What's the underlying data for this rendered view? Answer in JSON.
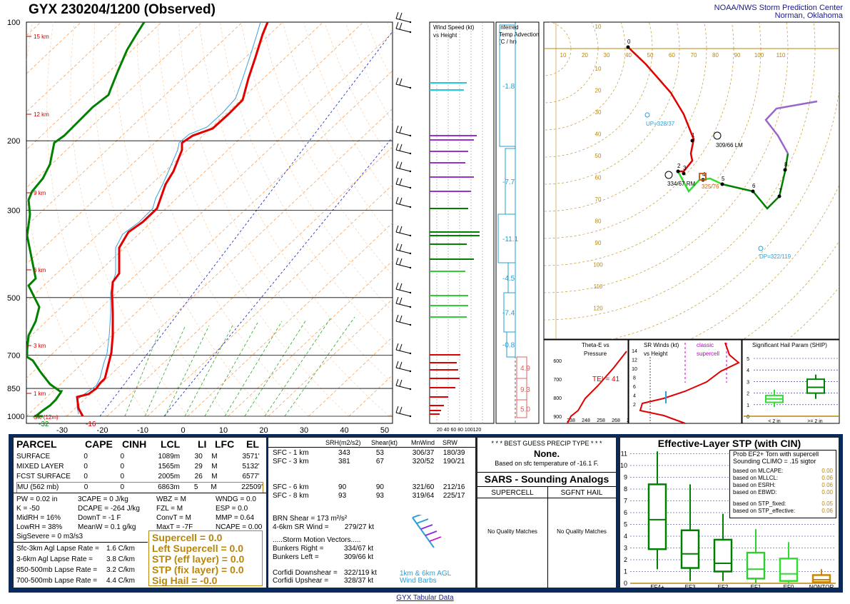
{
  "header": {
    "title": "GYX   230204/1200  (Observed)",
    "org_line1": "NOAA/NWS Storm Prediction Center",
    "org_line2": "Norman, Oklahoma"
  },
  "skewt": {
    "pressure_labels": [
      "100",
      "200",
      "300",
      "500",
      "700",
      "850",
      "1000"
    ],
    "height_labels": [
      "15 km",
      "12 km",
      "9 km",
      "6 km",
      "3 km",
      "1 km",
      "Sfc (12m)"
    ],
    "temp_ticks": [
      "-30",
      "-20",
      "-10",
      "0",
      "10",
      "20",
      "30",
      "40",
      "50"
    ],
    "sfc_td": "-32",
    "sfc_t": "-16"
  },
  "wind_speed_panel": {
    "title1": "Wind Speed (kt)",
    "title2": "vs Height",
    "axis": "20 40 60 80 100120"
  },
  "temp_adv_panel": {
    "title1": "Inferred",
    "title2": "Temp Advection",
    "title3": "(C / hr)",
    "values": [
      "-1.8",
      "-7.7",
      "-11.1",
      "-4.5",
      "-7.4",
      "-0.8",
      "4.9",
      "9.3",
      "5.0"
    ]
  },
  "hodograph": {
    "x_ticks": [
      "10",
      "20",
      "30",
      "40",
      "50",
      "60",
      "70",
      "80",
      "90",
      "100",
      "110"
    ],
    "y_ticks": [
      "10",
      "20",
      "30",
      "40",
      "50",
      "60",
      "70",
      "80",
      "90",
      "100",
      "110",
      "120"
    ],
    "top_ticks": [
      "10"
    ],
    "labels": {
      "up": "UP=328/37",
      "dp": "DP=322/119",
      "lm": "309/66 LM",
      "rm": "334/67 RM",
      "mean": "325/76"
    },
    "points": [
      "0",
      "1",
      "2",
      "3",
      "4",
      "5",
      "6",
      "7",
      "8"
    ]
  },
  "thetae_panel": {
    "title1": "Theta-E vs",
    "title2": "Pressure",
    "tei": "TEI = 41",
    "yt": [
      "600",
      "700",
      "800",
      "900"
    ],
    "xt": [
      "238",
      "248",
      "258",
      "268",
      "278"
    ]
  },
  "srwind_panel": {
    "title1": "SR Winds (kt)",
    "title2": "vs Height",
    "classic1": "classic",
    "classic2": "supercell",
    "yt": [
      "14",
      "12",
      "10",
      "8",
      "6",
      "4",
      "2"
    ]
  },
  "ship_panel": {
    "title": "Significant Hail Param (SHIP)",
    "yt": [
      "5",
      "4",
      "3",
      "2",
      "1",
      "0"
    ],
    "xt1": "< 2 in",
    "xt2": ">= 2 in"
  },
  "parcel_table": {
    "headers": [
      "PARCEL",
      "CAPE",
      "CINH",
      "LCL",
      "LI",
      "LFC",
      "EL"
    ],
    "rows": [
      [
        "SURFACE",
        "0",
        "0",
        "1089m",
        "30",
        "M",
        "3571'"
      ],
      [
        "MIXED LAYER",
        "0",
        "0",
        "1565m",
        "29",
        "M",
        "5132'"
      ],
      [
        "FCST SURFACE",
        "0",
        "0",
        "2005m",
        "26",
        "M",
        "6577'"
      ],
      [
        "MU   (562 mb)",
        "0",
        "0",
        "6863m",
        "5",
        "M",
        "22509'"
      ]
    ],
    "idx_col1": [
      "PW = 0.02  in",
      "K = -50",
      "MidRH = 16%",
      "LowRH = 38%",
      "SigSevere = 0 m3/s3"
    ],
    "idx_col2": [
      "3CAPE = 0 J/kg",
      "DCAPE = -264 J/kg",
      "DownT = -1 F",
      "MeanW = 0.1 g/kg"
    ],
    "idx_col3": [
      "WBZ = M",
      "FZL = M",
      "ConvT = M",
      "MaxT = -7F"
    ],
    "idx_col4": [
      "WNDG = 0.0",
      "ESP = 0.0",
      "MMP = 0.64",
      "NCAPE = 0.00"
    ],
    "lapse": [
      [
        "Sfc-3km Agl Lapse Rate =",
        "1.6 C/km"
      ],
      [
        "3-6km Agl Lapse Rate =",
        "3.8 C/km"
      ],
      [
        "850-500mb Lapse Rate =",
        "3.2 C/km"
      ],
      [
        "700-500mb Lapse Rate =",
        "4.4 C/km"
      ]
    ],
    "params": [
      "Supercell = 0.0",
      "Left Supercell = 0.0",
      "STP (eff layer) = 0.0",
      "STP (fix layer) = 0.0",
      "Sig Hail = -0.0"
    ]
  },
  "kinematics": {
    "headers": [
      "SRH(m2/s2)",
      "Shear(kt)",
      "MnWind",
      "SRW"
    ],
    "rows": [
      [
        "SFC - 1 km",
        "343",
        "53",
        "306/37",
        "180/39"
      ],
      [
        "SFC - 3 km",
        "381",
        "67",
        "320/52",
        "190/21"
      ],
      [
        "SFC - 6 km",
        "90",
        "90",
        "321/60",
        "212/16"
      ],
      [
        "SFC - 8 km",
        "93",
        "93",
        "319/64",
        "225/17"
      ]
    ],
    "brn_label": "BRN Shear =",
    "brn_val": "173 m²/s²",
    "srwind_label": "4-6km SR Wind =",
    "srwind_val": "279/27 kt",
    "storm_title": ".....Storm Motion Vectors.....",
    "bunkers_r_label": "Bunkers Right =",
    "bunkers_r": "334/67 kt",
    "bunkers_l_label": "Bunkers Left =",
    "bunkers_l": "309/66 kt",
    "corfidi_dn_label": "Corfidi Downshear =",
    "corfidi_dn": "322/119 kt",
    "corfidi_up_label": "Corfidi Upshear =",
    "corfidi_up": "328/37 kt",
    "barb_legend1": "1km & 6km AGL",
    "barb_legend2": "Wind Barbs"
  },
  "precip": {
    "title": "* * * BEST GUESS PRECIP TYPE * * *",
    "value": "None.",
    "note": "Based on sfc temperature of -16.1 F."
  },
  "sars": {
    "title": "SARS - Sounding Analogs",
    "col1": "SUPERCELL",
    "col2": "SGFNT HAIL",
    "nomatch": "No Quality Matches"
  },
  "stp": {
    "title": "Effective-Layer STP (with CIN)",
    "prob1": "Prob EF2+ Torn with supercell",
    "prob2": "Sounding CLIMO = .15 sigtor",
    "basis": [
      [
        "based on MLCAPE:",
        "0.00"
      ],
      [
        "based on MLLCL:",
        "0.06"
      ],
      [
        "based on ESRH:",
        "0.06"
      ],
      [
        "based on EBWD:",
        "0.00"
      ],
      [
        "based on STP_fixed:",
        "0.05"
      ],
      [
        "based on STP_effective:",
        "0.06"
      ]
    ],
    "yt": [
      "11",
      "10",
      "9",
      "8",
      "7",
      "6",
      "5",
      "4",
      "3",
      "2",
      "1",
      "0"
    ],
    "xt": [
      "EF4+",
      "EF3",
      "EF2",
      "EF1",
      "EF0",
      "NONTOR"
    ]
  },
  "footer": "GYX Tabular Data",
  "colors": {
    "temp": "#e00000",
    "dew": "#008000",
    "navy": "#0b2a5c",
    "gold": "#b8860b",
    "blue": "#1a1a8c"
  },
  "chart_data": [
    {
      "type": "line",
      "title": "Skew-T",
      "series": [
        {
          "name": "Temperature",
          "x": [
            -16,
            -14,
            -8,
            -6,
            -6,
            -5,
            -6,
            -12,
            -15,
            -18,
            -21,
            -28,
            -32,
            -35,
            -38,
            -43
          ],
          "y": [
            1000,
            950,
            900,
            850,
            800,
            700,
            600,
            500,
            450,
            400,
            350,
            300,
            250,
            200,
            150,
            100
          ]
        },
        {
          "name": "Dewpoint",
          "x": [
            -32,
            -36,
            -40,
            -40,
            -50,
            -60,
            -55,
            -65,
            -75,
            -70,
            -75,
            -78,
            -80,
            -85,
            -80,
            -75
          ],
          "y": [
            1000,
            950,
            900,
            850,
            800,
            700,
            600,
            500,
            450,
            400,
            350,
            300,
            250,
            200,
            150,
            100
          ]
        }
      ]
    },
    {
      "type": "box",
      "title": "Effective-Layer STP (with CIN)",
      "categories": [
        "EF4+",
        "EF3",
        "EF2",
        "EF1",
        "EF0",
        "NONTOR"
      ],
      "values": [
        [
          1.2,
          2.9,
          5.4,
          8.4,
          11.2
        ],
        [
          0.2,
          1.3,
          2.5,
          4.5,
          8.4
        ],
        [
          0.2,
          1.0,
          1.7,
          3.7,
          5.9
        ],
        [
          0,
          0.4,
          1.2,
          2.6,
          4.6
        ],
        [
          0,
          0.2,
          0.8,
          2.1,
          3.5
        ],
        [
          0,
          0.1,
          0.3,
          0.7,
          1.2
        ]
      ]
    },
    {
      "type": "box",
      "title": "Significant Hail Param (SHIP)",
      "categories": [
        "< 2 in",
        ">= 2 in"
      ],
      "values": [
        [
          0.8,
          1.2,
          1.5,
          1.8,
          2.3
        ],
        [
          1.5,
          2.0,
          2.5,
          3.2,
          3.6
        ]
      ]
    }
  ]
}
